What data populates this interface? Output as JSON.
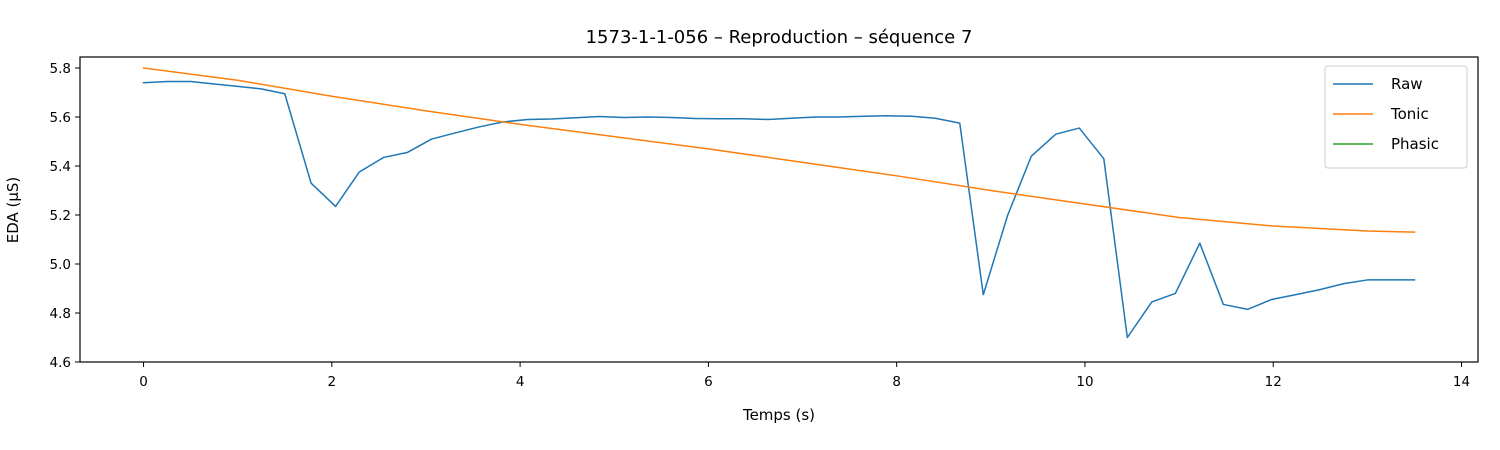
{
  "chart_data": {
    "type": "line",
    "title": "1573-1-1-056 – Reproduction – séquence 7",
    "xlabel": "Temps (s)",
    "ylabel": "EDA (µS)",
    "xlim": [
      -0.675,
      14.175
    ],
    "ylim": [
      4.6,
      5.845
    ],
    "xticks": [
      0,
      2,
      4,
      6,
      8,
      10,
      12,
      14
    ],
    "xtick_labels": [
      "0",
      "2",
      "4",
      "6",
      "8",
      "10",
      "12",
      "14"
    ],
    "yticks": [
      4.6,
      4.8,
      5.0,
      5.2,
      5.4,
      5.6,
      5.8
    ],
    "ytick_labels": [
      "4.6",
      "4.8",
      "5.0",
      "5.2",
      "5.4",
      "5.6",
      "5.8"
    ],
    "grid": false,
    "legend_position": "top-right",
    "series": [
      {
        "name": "Raw",
        "color": "#1f77b4",
        "x": [
          0,
          0.25,
          0.5,
          0.75,
          1.0,
          1.25,
          1.5,
          1.78,
          2.04,
          2.29,
          2.55,
          2.8,
          3.06,
          3.31,
          3.57,
          3.82,
          4.08,
          4.33,
          4.59,
          4.84,
          5.1,
          5.35,
          5.61,
          5.86,
          6.12,
          6.37,
          6.63,
          6.88,
          7.14,
          7.39,
          7.65,
          7.9,
          8.16,
          8.41,
          8.67,
          8.92,
          9.18,
          9.43,
          9.69,
          9.94,
          10.2,
          10.45,
          10.71,
          10.96,
          11.22,
          11.47,
          11.73,
          11.98,
          12.24,
          12.49,
          12.75,
          13.0,
          13.26,
          13.5
        ],
        "y": [
          5.74,
          5.745,
          5.745,
          5.735,
          5.725,
          5.715,
          5.695,
          5.33,
          5.235,
          5.375,
          5.435,
          5.455,
          5.51,
          5.535,
          5.56,
          5.58,
          5.59,
          5.592,
          5.597,
          5.602,
          5.598,
          5.6,
          5.598,
          5.594,
          5.593,
          5.593,
          5.59,
          5.595,
          5.6,
          5.6,
          5.603,
          5.605,
          5.603,
          5.595,
          5.575,
          4.875,
          5.2,
          5.44,
          5.53,
          5.555,
          5.43,
          4.7,
          4.845,
          4.88,
          5.085,
          4.835,
          4.815,
          4.855,
          4.875,
          4.895,
          4.92,
          4.935,
          4.935,
          4.935
        ]
      },
      {
        "name": "Tonic",
        "color": "#ff7f0e",
        "x": [
          0,
          1,
          2,
          3,
          4,
          5,
          6,
          7,
          8,
          9,
          10,
          11,
          12,
          13,
          13.5
        ],
        "y": [
          5.8,
          5.75,
          5.685,
          5.625,
          5.57,
          5.52,
          5.47,
          5.415,
          5.36,
          5.3,
          5.245,
          5.19,
          5.155,
          5.135,
          5.13
        ]
      },
      {
        "name": "Phasic",
        "color": "#2ca02c",
        "x": [],
        "y": []
      }
    ]
  }
}
